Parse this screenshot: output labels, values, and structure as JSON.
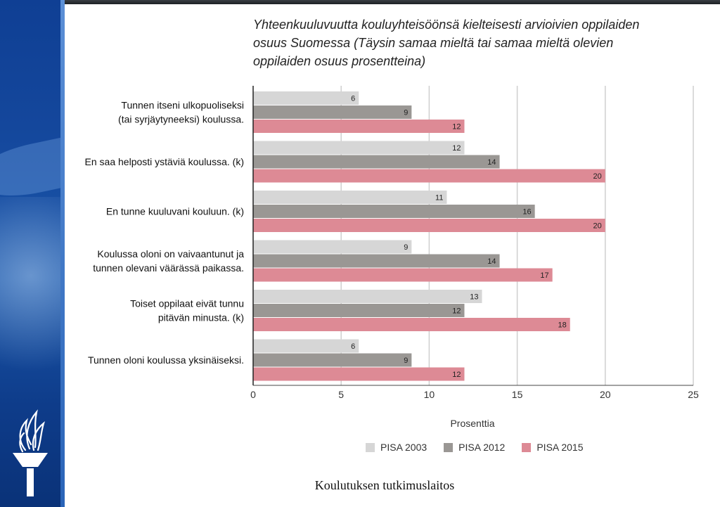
{
  "footer": "Koulutuksen tutkimuslaitos",
  "chart_data": {
    "type": "bar",
    "orientation": "horizontal",
    "title": "Yhteenkuuluvuutta kouluyhteisöönsä kielteisesti arvioivien oppilaiden osuus Suomessa (Täysin samaa mieltä tai samaa mieltä olevien oppilaiden osuus prosentteina)",
    "categories": [
      [
        "Tunnen itseni ulkopuoliseksi",
        "(tai syrjäytyneeksi) koulussa."
      ],
      [
        "En saa helposti ystäviä koulussa. (k)"
      ],
      [
        "En tunne kuuluvani kouluun. (k)"
      ],
      [
        "Koulussa oloni on vaivaantunut ja",
        "tunnen olevani väärässä paikassa."
      ],
      [
        "Toiset oppilaat eivät tunnu",
        "pitävän minusta. (k)"
      ],
      [
        "Tunnen oloni koulussa yksinäiseksi."
      ]
    ],
    "series": [
      {
        "name": "PISA 2003",
        "color": "#d6d6d6",
        "values": [
          6,
          12,
          11,
          9,
          13,
          6
        ]
      },
      {
        "name": "PISA 2012",
        "color": "#9a9794",
        "values": [
          9,
          14,
          16,
          14,
          12,
          9
        ]
      },
      {
        "name": "PISA 2015",
        "color": "#dd8a95",
        "values": [
          12,
          20,
          20,
          17,
          18,
          12
        ]
      }
    ],
    "xlabel": "Prosenttia",
    "xlim": [
      0,
      25
    ],
    "xticks": [
      0,
      5,
      10,
      15,
      20,
      25
    ],
    "grid": true,
    "legend": "bottom"
  }
}
